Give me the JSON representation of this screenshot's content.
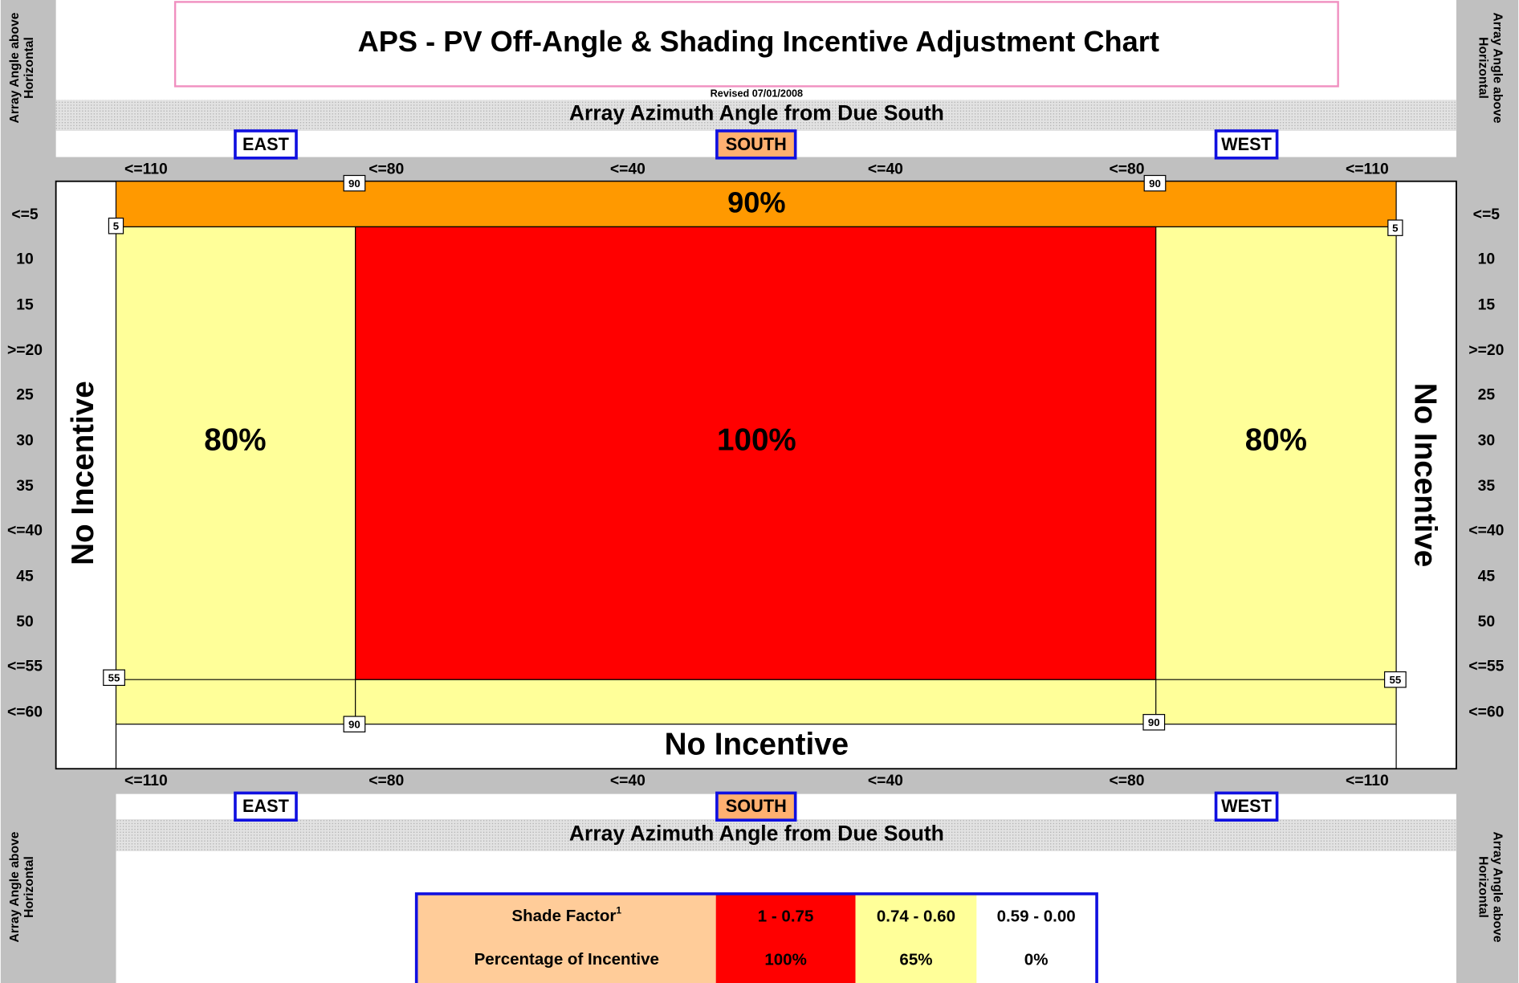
{
  "header": {
    "title": "APS - PV Off-Angle & Shading Incentive Adjustment Chart",
    "revised": "Revised 07/01/2008"
  },
  "azimuth": {
    "label": "Array Azimuth Angle from Due South",
    "directions": [
      "EAST",
      "SOUTH",
      "WEST"
    ],
    "ticks": [
      "<=110",
      "<=80",
      "<=40",
      "<=40",
      "<=80",
      "<=110"
    ]
  },
  "tilt": {
    "label_lines": [
      "Array Angle above",
      "Horizontal"
    ],
    "ticks": [
      "<=5",
      "10",
      "15",
      ">=20",
      "25",
      "30",
      "35",
      "<=40",
      "45",
      "50",
      "<=55",
      "<=60"
    ]
  },
  "zones": {
    "top": "90%",
    "center": "100%",
    "east": "80%",
    "west": "80%",
    "none": "No Incentive"
  },
  "markers": {
    "top_left": "90",
    "top_right": "90",
    "upper_left": "5",
    "upper_right": "5",
    "lower_left": "55",
    "lower_right": "55",
    "bottom_left": "90",
    "bottom_right": "90"
  },
  "legend": {
    "rows": [
      {
        "label": "Shade Factor",
        "note": "1",
        "cells": [
          "1 - 0.75",
          "0.74 - 0.60",
          "0.59 - 0.00"
        ]
      },
      {
        "label": "Percentage of Incentive",
        "cells": [
          "100%",
          "65%",
          "0%"
        ]
      }
    ]
  }
}
